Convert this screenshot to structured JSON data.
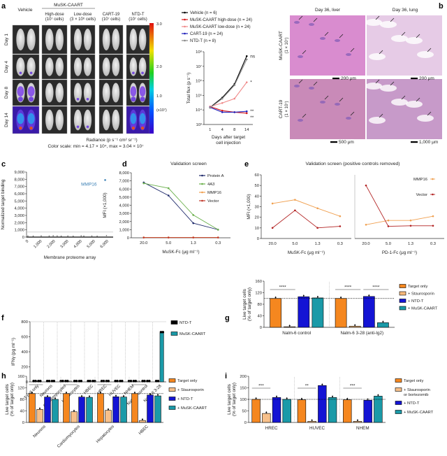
{
  "panel_labels": [
    "a",
    "b",
    "c",
    "d",
    "e",
    "f",
    "g",
    "h",
    "i"
  ],
  "panel_a": {
    "vehicle_label": "Vehicle",
    "group_label": "MuSK-CAART",
    "conditions": [
      {
        "name": "Vehicle",
        "line1": "",
        "line2": ""
      },
      {
        "name": "High-dose",
        "line1": "High-dose",
        "line2": "(10⁷ cells)"
      },
      {
        "name": "Low-dose",
        "line1": "Low-dose",
        "line2": "(3 × 10⁶ cells)"
      },
      {
        "name": "CART-19",
        "line1": "CART-19",
        "line2": "(10⁷ cells)"
      },
      {
        "name": "NTD-T",
        "line1": "NTD-T",
        "line2": "(10⁷ cells)"
      }
    ],
    "days": [
      "Day 1",
      "Day 4",
      "Day 8",
      "Day 14"
    ],
    "colorbar": {
      "ticks": [
        "3.0",
        "2.0",
        "1.0"
      ],
      "unit": "(x10⁷)"
    },
    "radiance_label": "Radiance (p s⁻¹ cm² sr⁻¹)",
    "color_scale": "Color scale: min = 4.17 × 10⁴, max = 3.04 × 10⁷"
  },
  "panel_b": {
    "columns": [
      "Day 36, liver",
      "Day 36, lung"
    ],
    "rows": [
      {
        "line1": "MuSK-CAART",
        "line2": "(1 × 10⁷)"
      },
      {
        "line1": "CART-19",
        "line2": "(1 × 10⁷)"
      }
    ],
    "scale_bars": [
      "200 μm",
      "200 μm",
      "500 μm",
      "1,000 μm"
    ]
  },
  "chart_data": [
    {
      "id": "a",
      "type": "line",
      "log_y": true,
      "xlabel": "Days after target cell injection",
      "xlabel_lines": [
        "Days after target",
        "cell injection"
      ],
      "ylabel": "Total flux (p s⁻¹)",
      "x": [
        1,
        4,
        8,
        14
      ],
      "x_ticks": [
        "1",
        "4",
        "8",
        "14"
      ],
      "ylim": [
        1000,
        100000000
      ],
      "y_ticks": [
        "10³",
        "10⁴",
        "10⁵",
        "10⁶",
        "10⁷",
        "10⁸"
      ],
      "series": [
        {
          "name": "Vehicle (n = 6)",
          "color": "#000000",
          "values": [
            15000,
            70000,
            600000,
            50000000
          ],
          "sig": "ns"
        },
        {
          "name": "MuSK-CAART high-dose (n = 24)",
          "color": "#d7191c",
          "values": [
            17000,
            9000,
            7000,
            6000
          ],
          "sig": "**"
        },
        {
          "name": "MuSK-CAART low-dose (n = 24)",
          "color": "#f08a8a",
          "values": [
            17000,
            30000,
            60000,
            800000
          ],
          "sig": "*"
        },
        {
          "name": "CART-19 (n = 24)",
          "color": "#2222bb",
          "values": [
            15000,
            7000,
            7000,
            8000
          ],
          "sig": "**"
        },
        {
          "name": "NTD-T (n = 8)",
          "color": "#8a8a8a",
          "values": [
            14000,
            60000,
            500000,
            30000000
          ],
          "sig": ""
        }
      ]
    },
    {
      "id": "c",
      "type": "scatter",
      "xlabel": "Membrane proteome array",
      "ylabel": "Normalized target binding",
      "xlim": [
        0,
        6500
      ],
      "ylim": [
        0,
        9000
      ],
      "x_ticks": [
        "0",
        "1,000",
        "2,000",
        "3,000",
        "4,000",
        "5,000",
        "6,000"
      ],
      "y_ticks": [
        "0",
        "1,000",
        "2,000",
        "3,000",
        "4,000",
        "5,000",
        "6,000",
        "7,000",
        "8,000",
        "9,000"
      ],
      "threshold": 700,
      "highlight": {
        "label": "MMP16",
        "x": 5900,
        "y": 7900,
        "color": "#3a7fb5"
      },
      "points": [
        [
          100,
          60
        ],
        [
          500,
          40
        ],
        [
          1100,
          70
        ],
        [
          1700,
          50
        ],
        [
          2000,
          90
        ],
        [
          2300,
          60
        ],
        [
          2600,
          40
        ],
        [
          3100,
          50
        ],
        [
          3500,
          30
        ],
        [
          4100,
          80
        ],
        [
          4300,
          40
        ],
        [
          4900,
          50
        ],
        [
          5300,
          30
        ],
        [
          6000,
          120
        ]
      ]
    },
    {
      "id": "d",
      "type": "line",
      "title": "Validation screen",
      "xlabel": "MuSK-Fc (μg ml⁻¹)",
      "ylabel": "MFI (×1,000)",
      "x_ticks": [
        "20.0",
        "5.0",
        "1.3",
        "0.3"
      ],
      "ylim": [
        0,
        8000
      ],
      "y_ticks": [
        "0",
        "1,000",
        "2,000",
        "3,000",
        "4,000",
        "5,000",
        "6,000",
        "7,000",
        "8,000"
      ],
      "series": [
        {
          "name": "Protein A",
          "color": "#1f2a6b",
          "values": [
            6800,
            5200,
            1800,
            1000
          ]
        },
        {
          "name": "4A3",
          "color": "#6ab04c",
          "values": [
            6700,
            6100,
            2800,
            1000
          ]
        },
        {
          "name": "MMP16",
          "color": "#f0a050",
          "values": [
            50,
            50,
            50,
            50
          ]
        },
        {
          "name": "Vector",
          "color": "#c0392b",
          "values": [
            30,
            30,
            30,
            30
          ]
        }
      ]
    },
    {
      "id": "e-left",
      "type": "line",
      "title": "Validation screen (positive controls removed)",
      "xlabel": "MuSK-Fc (μg ml⁻¹)",
      "ylabel": "MFI (×1,000)",
      "x_ticks": [
        "20.0",
        "5.0",
        "1.3",
        "0.3"
      ],
      "ylim": [
        0,
        60
      ],
      "y_ticks": [
        "0",
        "10",
        "20",
        "30",
        "40",
        "50",
        "60"
      ],
      "series": [
        {
          "name": "MMP16",
          "color": "#f0a050",
          "values": [
            33,
            36.5,
            28.5,
            21
          ]
        },
        {
          "name": "Vector",
          "color": "#b22222",
          "values": [
            10,
            26.5,
            10,
            11.5
          ]
        }
      ]
    },
    {
      "id": "e-right",
      "type": "line",
      "xlabel": "PD-1-Fc (μg ml⁻¹)",
      "x_ticks": [
        "20.0",
        "5.0",
        "1.3",
        "0.3"
      ],
      "ylim": [
        0,
        60
      ],
      "series": [
        {
          "name": "MMP16",
          "color": "#f0a050",
          "values": [
            13,
            17,
            17,
            21
          ]
        },
        {
          "name": "Vector",
          "color": "#b22222",
          "values": [
            50,
            11.5,
            12,
            12
          ]
        }
      ]
    },
    {
      "id": "f",
      "type": "bar",
      "ylabel": "IFNγ (pg ml⁻¹)",
      "ylim": [
        0,
        800
      ],
      "y_ticks": [
        "0",
        "200",
        "400",
        "600",
        "800"
      ],
      "categories": [
        "T cell only",
        "Neurons",
        "Cardiomyocytes",
        "Hepatocytes",
        "HBEC",
        "HREC",
        "HUVEC",
        "NHEM",
        "Nalm-6 control",
        "Nalm-6 3-28"
      ],
      "series": [
        {
          "name": "NTD-T",
          "color": "#000000",
          "values": [
            0,
            0,
            0,
            0,
            0,
            0,
            0,
            0,
            0,
            0
          ]
        },
        {
          "name": "MuSK-CAART",
          "color": "#1a9aa8",
          "values": [
            0,
            0,
            0,
            0,
            0,
            0,
            0,
            0,
            0,
            650
          ]
        }
      ]
    },
    {
      "id": "g",
      "type": "bar",
      "ylabel": "Live target cells (% of target only)",
      "ylim": [
        0,
        160
      ],
      "y_ticks": [
        "0",
        "40",
        "80",
        "120",
        "160"
      ],
      "reference_line": 100,
      "categories": [
        "Nalm-6 control",
        "Nalm-6 3-28  (anti-Ig2)"
      ],
      "series": [
        {
          "name": "Target only",
          "color": "#f5871f",
          "values": [
            100,
            100
          ]
        },
        {
          "name": "+ Staurosporin",
          "color": "#f7b97a",
          "values": [
            2,
            4
          ]
        },
        {
          "name": "+ NTD-T",
          "color": "#1414d4",
          "values": [
            106,
            107
          ]
        },
        {
          "name": "+ MuSK-CAART",
          "color": "#1a9aa8",
          "values": [
            102,
            16
          ]
        }
      ],
      "significance": [
        {
          "cat": 0,
          "from": 0,
          "to": 1,
          "label": "****"
        },
        {
          "cat": 1,
          "from": 0,
          "to": 1,
          "label": "****"
        },
        {
          "cat": 1,
          "from": 2,
          "to": 3,
          "label": "****"
        }
      ]
    },
    {
      "id": "h",
      "type": "bar",
      "ylabel": "Live target cells (% of target only)",
      "ylim": [
        0,
        160
      ],
      "y_ticks": [
        "0",
        "40",
        "80",
        "120",
        "160"
      ],
      "reference_line": 100,
      "categories": [
        "Neurons",
        "Cardiomyocytes",
        "Hepatocytes",
        "HBEC"
      ],
      "series": [
        {
          "name": "Target only",
          "color": "#f5871f",
          "values": [
            100,
            100,
            100,
            100
          ]
        },
        {
          "name": "+ Staurosporin",
          "color": "#f7c08a",
          "values": [
            45,
            37,
            42,
            7
          ]
        },
        {
          "name": "+ NTD-T",
          "color": "#1414d4",
          "values": [
            88,
            88,
            89,
            95
          ]
        },
        {
          "name": "+ MuSK-CAART",
          "color": "#1a9aa8",
          "values": [
            80,
            87,
            88,
            92
          ]
        }
      ],
      "significance": [
        {
          "cat": 0,
          "from": 0,
          "to": 1,
          "label": "**"
        },
        {
          "cat": 1,
          "from": 0,
          "to": 1,
          "label": "**"
        },
        {
          "cat": 2,
          "from": 0,
          "to": 1,
          "label": "***"
        },
        {
          "cat": 3,
          "from": 0,
          "to": 1,
          "label": "**"
        }
      ]
    },
    {
      "id": "i",
      "type": "bar",
      "ylabel": "Live target cells (% of target only)",
      "ylim": [
        0,
        200
      ],
      "y_ticks": [
        "0",
        "50",
        "100",
        "150",
        "200"
      ],
      "reference_line": 100,
      "categories": [
        "HREC",
        "HUVEC",
        "NHEM"
      ],
      "series": [
        {
          "name": "Target only",
          "color": "#f5871f",
          "values": [
            100,
            98,
            98
          ]
        },
        {
          "name": "+ Staurosporin or bortezomib",
          "legend_lines": [
            "+ Staurosporin",
            "or bortezomib"
          ],
          "color": "#f7c08a",
          "values": [
            39,
            5,
            5
          ]
        },
        {
          "name": "+ NTD-T",
          "color": "#1414d4",
          "values": [
            108,
            160,
            96
          ]
        },
        {
          "name": "+ MuSK-CAART",
          "color": "#1a9aa8",
          "values": [
            100,
            108,
            114
          ]
        }
      ],
      "significance": [
        {
          "cat": 0,
          "from": 0,
          "to": 1,
          "label": "***"
        },
        {
          "cat": 1,
          "from": 0,
          "to": 1,
          "label": "**"
        },
        {
          "cat": 2,
          "from": 0,
          "to": 1,
          "label": "***"
        }
      ]
    }
  ]
}
